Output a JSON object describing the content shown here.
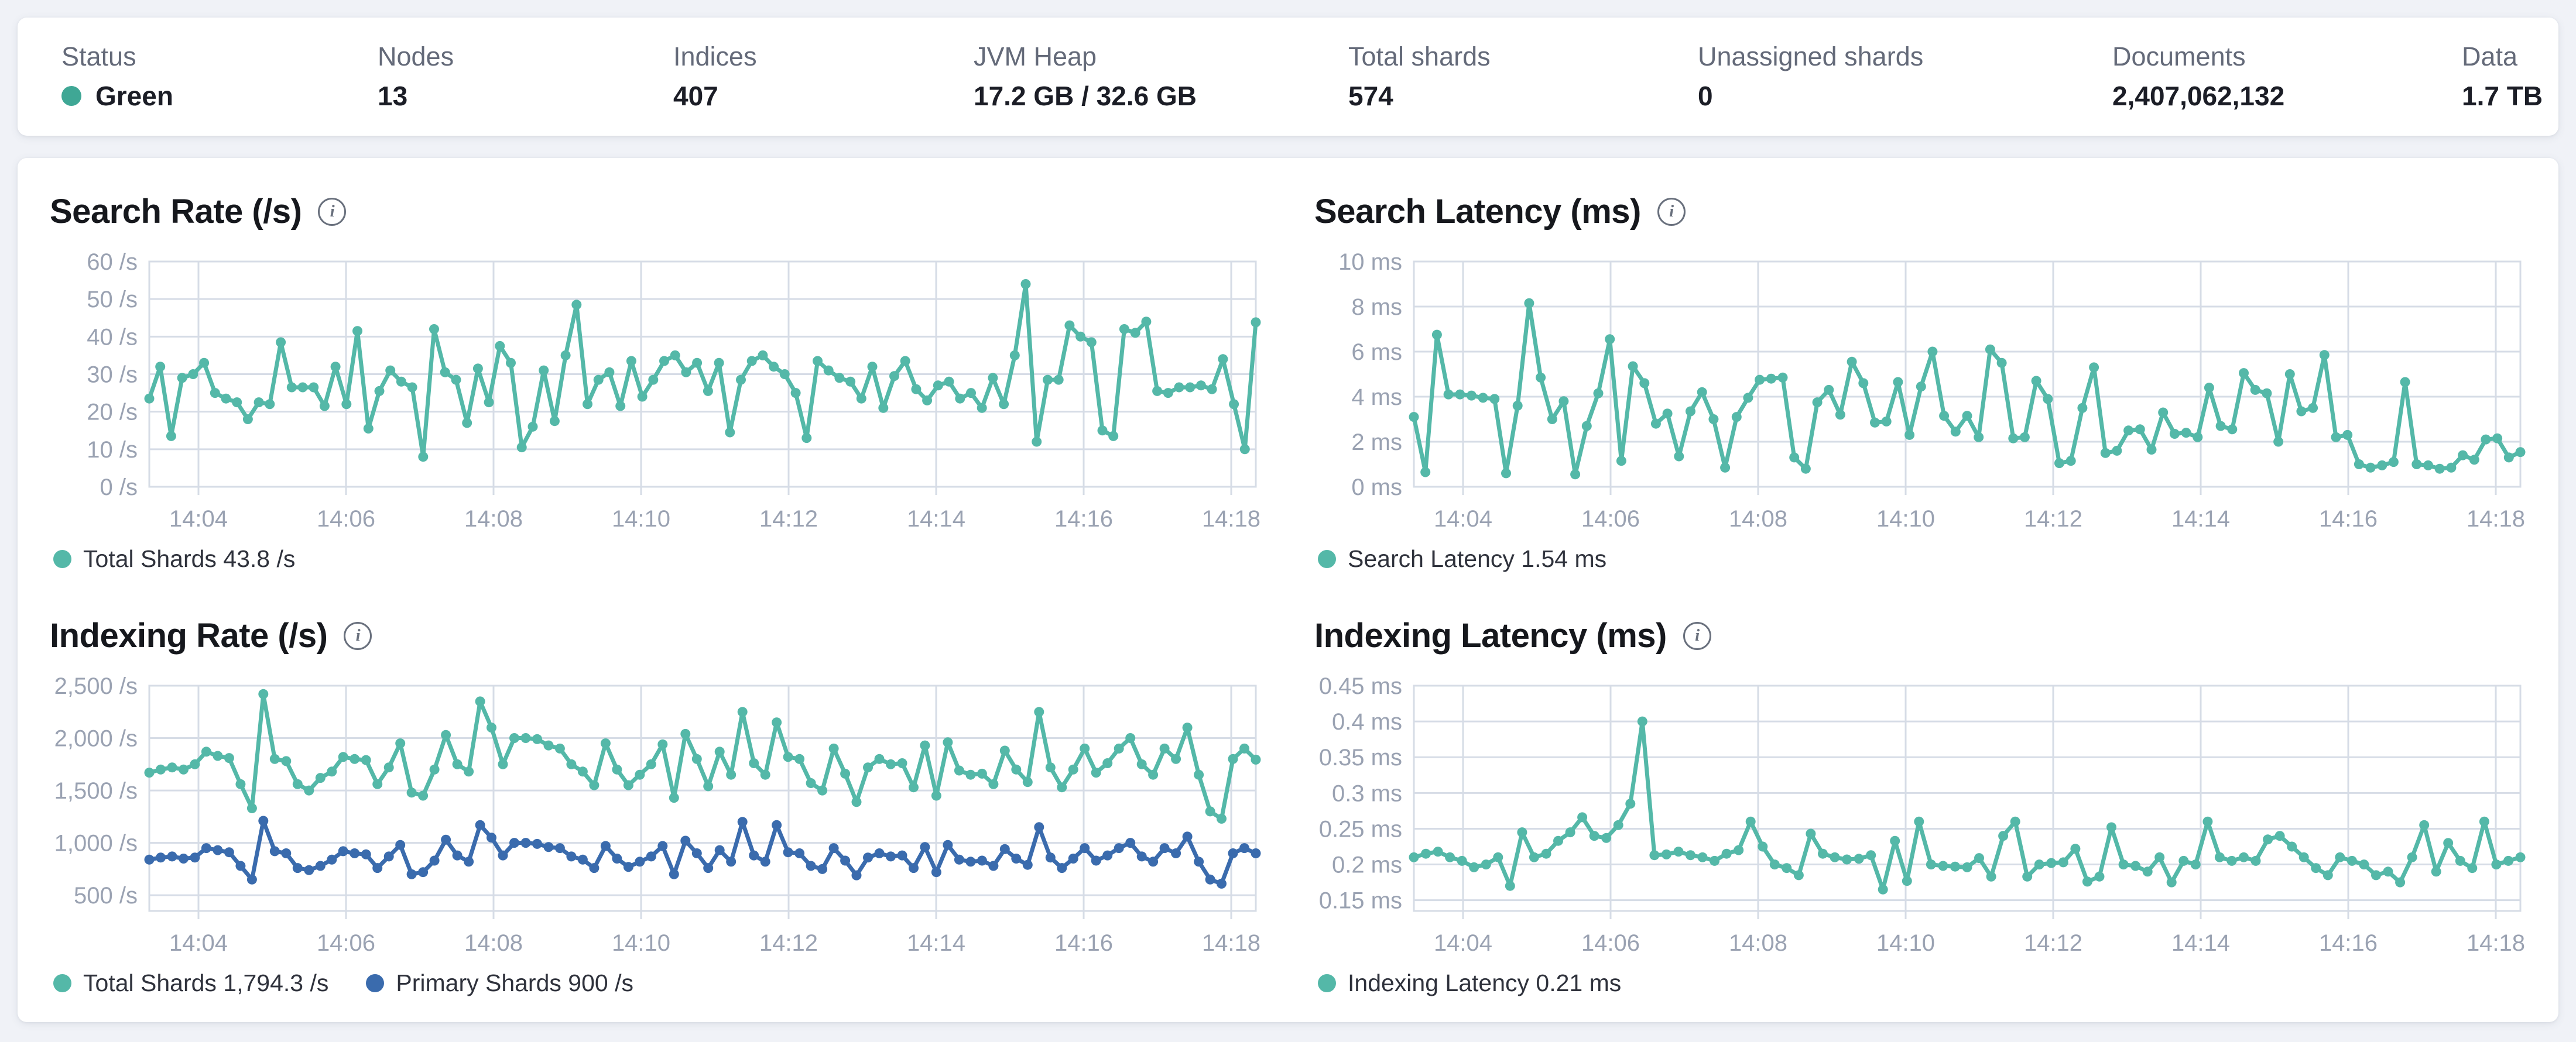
{
  "app": "Elasticsearch cluster monitoring overview",
  "colors": {
    "teal": "#54b8a8",
    "blue": "#3a6bad",
    "status_green": "#3fa795",
    "grid": "#d6dce6",
    "tick_text": "#9aa2b2"
  },
  "stats_bar": {
    "items": [
      {
        "label": "Status",
        "value": "Green",
        "indicator_color": "#3fa795"
      },
      {
        "label": "Nodes",
        "value": "13"
      },
      {
        "label": "Indices",
        "value": "407"
      },
      {
        "label": "JVM Heap",
        "value": "17.2 GB / 32.6 GB"
      },
      {
        "label": "Total shards",
        "value": "574"
      },
      {
        "label": "Unassigned shards",
        "value": "0"
      },
      {
        "label": "Documents",
        "value": "2,407,062,132"
      },
      {
        "label": "Data",
        "value": "1.7 TB"
      }
    ]
  },
  "chart_data": [
    {
      "type": "line",
      "title": "Search Rate (/s)",
      "info_icon": "i",
      "grid": true,
      "legend_position": "bottom",
      "x_range": [
        "14:03:20",
        "14:18:20"
      ],
      "x_ticks": [
        "14:04",
        "14:06",
        "14:08",
        "14:10",
        "14:12",
        "14:14",
        "14:16",
        "14:18"
      ],
      "ylim": [
        0,
        60
      ],
      "y_ticks": [
        0,
        10,
        20,
        30,
        40,
        50,
        60
      ],
      "y_tick_labels": [
        "0 /s",
        "10 /s",
        "20 /s",
        "30 /s",
        "40 /s",
        "50 /s",
        "60 /s"
      ],
      "series": [
        {
          "name": "Total Shards",
          "current_value": "43.8 /s",
          "legend_label": "Total Shards 43.8 /s",
          "color": "#54b8a8",
          "values": [
            23.5,
            32,
            13.5,
            29,
            30,
            33,
            25,
            23.5,
            22.5,
            18,
            22.5,
            22,
            38.5,
            26.5,
            26.5,
            26.5,
            21.5,
            32,
            22,
            41.5,
            15.5,
            25.5,
            31,
            28,
            26.5,
            8,
            42,
            30.5,
            28.5,
            17,
            31.5,
            22.5,
            37.5,
            33,
            10.5,
            16,
            31,
            17.5,
            35,
            48.5,
            22,
            28.5,
            30.5,
            21.5,
            33.5,
            24,
            28.5,
            33.5,
            35,
            30.5,
            33,
            25.5,
            33,
            14.5,
            28.5,
            33.5,
            35,
            32,
            30,
            25,
            13,
            33.5,
            31,
            29,
            28,
            23.5,
            32,
            21,
            29.5,
            33.5,
            26,
            23,
            27,
            28,
            23.5,
            25,
            21,
            29,
            22,
            35,
            54,
            12,
            28.5,
            28.5,
            43,
            40,
            38.5,
            15,
            13.5,
            42,
            41,
            44,
            25.5,
            25,
            26.5,
            26.5,
            27,
            26,
            34,
            22,
            10,
            43.8
          ]
        }
      ]
    },
    {
      "type": "line",
      "title": "Search Latency (ms)",
      "info_icon": "i",
      "grid": true,
      "legend_position": "bottom",
      "x_range": [
        "14:03:20",
        "14:18:20"
      ],
      "x_ticks": [
        "14:04",
        "14:06",
        "14:08",
        "14:10",
        "14:12",
        "14:14",
        "14:16",
        "14:18"
      ],
      "ylim": [
        0,
        10
      ],
      "y_ticks": [
        0,
        2,
        4,
        6,
        8,
        10
      ],
      "y_tick_labels": [
        "0 ms",
        "2 ms",
        "4 ms",
        "6 ms",
        "8 ms",
        "10 ms"
      ],
      "series": [
        {
          "name": "Search Latency",
          "current_value": "1.54 ms",
          "legend_label": "Search Latency 1.54 ms",
          "color": "#54b8a8",
          "values": [
            3.1,
            0.65,
            6.75,
            4.1,
            4.1,
            4.05,
            3.95,
            3.9,
            0.6,
            3.6,
            8.15,
            4.85,
            3.0,
            3.8,
            0.55,
            2.7,
            4.15,
            6.55,
            1.15,
            5.35,
            4.6,
            2.8,
            3.25,
            1.35,
            3.35,
            4.2,
            3.0,
            0.85,
            3.1,
            3.95,
            4.75,
            4.8,
            4.85,
            1.3,
            0.8,
            3.75,
            4.3,
            3.2,
            5.55,
            4.6,
            2.85,
            2.9,
            4.65,
            2.3,
            4.45,
            6.0,
            3.15,
            2.45,
            3.15,
            2.2,
            6.1,
            5.5,
            2.15,
            2.2,
            4.7,
            3.9,
            1.05,
            1.15,
            3.5,
            5.3,
            1.5,
            1.6,
            2.5,
            2.55,
            1.65,
            3.3,
            2.35,
            2.4,
            2.2,
            4.4,
            2.7,
            2.55,
            5.05,
            4.3,
            4.15,
            2.0,
            5.0,
            3.35,
            3.5,
            5.85,
            2.2,
            2.3,
            1.0,
            0.85,
            0.95,
            1.1,
            4.65,
            1.0,
            0.95,
            0.8,
            0.85,
            1.4,
            1.2,
            2.1,
            2.15,
            1.3,
            1.54
          ]
        }
      ]
    },
    {
      "type": "line",
      "title": "Indexing Rate (/s)",
      "info_icon": "i",
      "grid": true,
      "legend_position": "bottom",
      "x_range": [
        "14:03:20",
        "14:18:20"
      ],
      "x_ticks": [
        "14:04",
        "14:06",
        "14:08",
        "14:10",
        "14:12",
        "14:14",
        "14:16",
        "14:18"
      ],
      "ylim": [
        350,
        2500
      ],
      "y_ticks": [
        500,
        1000,
        1500,
        2000,
        2500
      ],
      "y_tick_labels": [
        "500 /s",
        "1,000 /s",
        "1,500 /s",
        "2,000 /s",
        "2,500 /s"
      ],
      "series": [
        {
          "name": "Total Shards",
          "current_value": "1,794.3 /s",
          "legend_label": "Total Shards 1,794.3 /s",
          "color": "#54b8a8",
          "values": [
            1670,
            1700,
            1720,
            1700,
            1750,
            1870,
            1830,
            1810,
            1560,
            1330,
            2420,
            1800,
            1780,
            1560,
            1500,
            1620,
            1680,
            1820,
            1800,
            1790,
            1560,
            1720,
            1950,
            1480,
            1450,
            1700,
            2030,
            1750,
            1680,
            2350,
            2100,
            1750,
            2000,
            2000,
            1990,
            1930,
            1900,
            1750,
            1680,
            1550,
            1950,
            1700,
            1550,
            1650,
            1750,
            1940,
            1430,
            2040,
            1800,
            1540,
            1870,
            1650,
            2250,
            1760,
            1650,
            2150,
            1820,
            1800,
            1570,
            1500,
            1900,
            1660,
            1390,
            1720,
            1800,
            1750,
            1760,
            1530,
            1930,
            1450,
            1960,
            1690,
            1650,
            1660,
            1560,
            1880,
            1700,
            1580,
            2250,
            1720,
            1530,
            1700,
            1900,
            1670,
            1760,
            1900,
            2000,
            1750,
            1650,
            1900,
            1800,
            2100,
            1650,
            1300,
            1230,
            1800,
            1900,
            1794.3
          ]
        },
        {
          "name": "Primary Shards",
          "current_value": "900 /s",
          "legend_label": "Primary Shards 900 /s",
          "color": "#3a6bad",
          "values": [
            840,
            860,
            870,
            850,
            860,
            950,
            930,
            910,
            780,
            650,
            1210,
            920,
            900,
            760,
            740,
            780,
            840,
            920,
            900,
            890,
            760,
            870,
            980,
            700,
            720,
            830,
            1030,
            880,
            820,
            1170,
            1050,
            880,
            1000,
            1000,
            990,
            960,
            950,
            870,
            840,
            760,
            970,
            850,
            770,
            820,
            870,
            970,
            700,
            1020,
            900,
            760,
            930,
            820,
            1200,
            880,
            820,
            1170,
            910,
            900,
            780,
            750,
            950,
            830,
            690,
            860,
            900,
            870,
            880,
            760,
            960,
            720,
            980,
            840,
            820,
            830,
            780,
            940,
            850,
            790,
            1150,
            860,
            760,
            850,
            950,
            830,
            880,
            950,
            1000,
            870,
            820,
            950,
            900,
            1060,
            820,
            650,
            610,
            900,
            950,
            900
          ]
        }
      ]
    },
    {
      "type": "line",
      "title": "Indexing Latency (ms)",
      "info_icon": "i",
      "grid": true,
      "legend_position": "bottom",
      "x_range": [
        "14:03:20",
        "14:18:20"
      ],
      "x_ticks": [
        "14:04",
        "14:06",
        "14:08",
        "14:10",
        "14:12",
        "14:14",
        "14:16",
        "14:18"
      ],
      "ylim": [
        0.135,
        0.45
      ],
      "y_ticks": [
        0.15,
        0.2,
        0.25,
        0.3,
        0.35,
        0.4,
        0.45
      ],
      "y_tick_labels": [
        "0.15 ms",
        "0.2 ms",
        "0.25 ms",
        "0.3 ms",
        "0.35 ms",
        "0.4 ms",
        "0.45 ms"
      ],
      "series": [
        {
          "name": "Indexing Latency",
          "current_value": "0.21 ms",
          "legend_label": "Indexing Latency 0.21 ms",
          "color": "#54b8a8",
          "values": [
            0.21,
            0.215,
            0.218,
            0.21,
            0.205,
            0.196,
            0.2,
            0.21,
            0.17,
            0.245,
            0.21,
            0.215,
            0.233,
            0.245,
            0.266,
            0.24,
            0.237,
            0.255,
            0.285,
            0.4,
            0.213,
            0.214,
            0.218,
            0.213,
            0.21,
            0.205,
            0.215,
            0.22,
            0.26,
            0.225,
            0.2,
            0.195,
            0.185,
            0.243,
            0.215,
            0.21,
            0.207,
            0.208,
            0.213,
            0.165,
            0.233,
            0.177,
            0.26,
            0.2,
            0.198,
            0.197,
            0.196,
            0.209,
            0.183,
            0.24,
            0.26,
            0.183,
            0.2,
            0.202,
            0.203,
            0.222,
            0.176,
            0.183,
            0.252,
            0.2,
            0.198,
            0.19,
            0.21,
            0.175,
            0.205,
            0.2,
            0.26,
            0.21,
            0.205,
            0.21,
            0.205,
            0.235,
            0.24,
            0.225,
            0.21,
            0.195,
            0.185,
            0.21,
            0.205,
            0.2,
            0.185,
            0.19,
            0.175,
            0.21,
            0.255,
            0.19,
            0.23,
            0.205,
            0.195,
            0.26,
            0.2,
            0.205,
            0.21
          ]
        }
      ]
    }
  ]
}
